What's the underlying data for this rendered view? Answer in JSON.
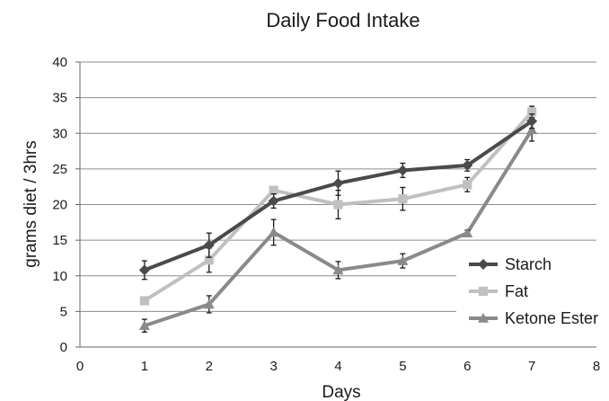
{
  "chart_data": {
    "type": "line",
    "title": "Daily Food Intake",
    "xlabel": "Days",
    "ylabel": "grams diet / 3hrs",
    "xlim": [
      0,
      8
    ],
    "ylim": [
      0,
      40
    ],
    "x_ticks": [
      "0",
      "1",
      "2",
      "3",
      "4",
      "5",
      "6",
      "7",
      "8"
    ],
    "y_ticks": [
      "0",
      "5",
      "10",
      "15",
      "20",
      "25",
      "30",
      "35",
      "40"
    ],
    "grid": "horizontal",
    "legend_position": "right",
    "x": [
      1,
      2,
      3,
      4,
      5,
      6,
      7
    ],
    "series": [
      {
        "name": "Starch",
        "marker": "diamond",
        "color": "#4a4a4a",
        "values": [
          10.8,
          14.3,
          20.5,
          23.0,
          24.8,
          25.5,
          31.7
        ],
        "error": [
          1.3,
          1.7,
          1.0,
          1.7,
          1.0,
          0.8,
          1.0
        ]
      },
      {
        "name": "Fat",
        "marker": "square",
        "color": "#c0c0c0",
        "values": [
          6.5,
          12.2,
          22.0,
          20.0,
          20.8,
          22.8,
          33.0
        ],
        "error": [
          0.5,
          1.7,
          0.5,
          2.0,
          1.6,
          1.0,
          0.8
        ]
      },
      {
        "name": "Ketone Ester",
        "marker": "triangle",
        "color": "#8a8a8a",
        "values": [
          3.0,
          6.0,
          16.1,
          10.8,
          12.1,
          16.0,
          30.5
        ],
        "error": [
          0.9,
          1.2,
          1.8,
          1.2,
          1.0,
          0.4,
          1.6
        ]
      }
    ]
  }
}
